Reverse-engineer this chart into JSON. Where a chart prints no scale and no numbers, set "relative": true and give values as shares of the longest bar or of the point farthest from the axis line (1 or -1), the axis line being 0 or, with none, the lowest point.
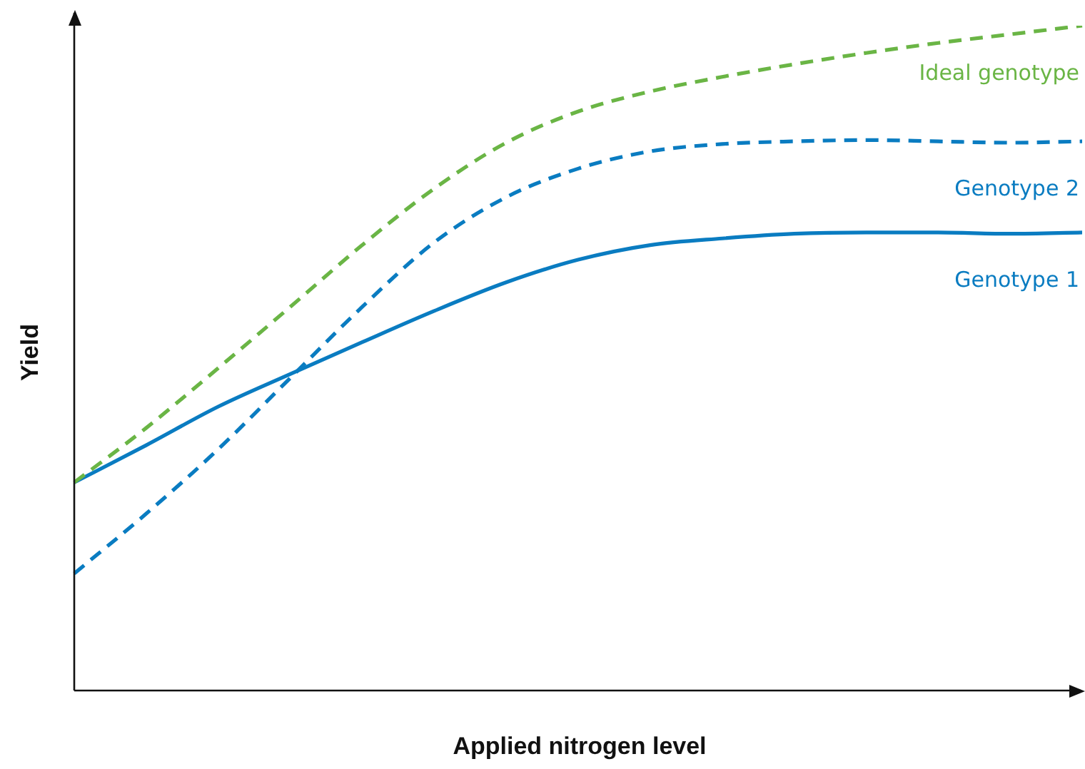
{
  "chart_data": {
    "type": "line",
    "relative": true,
    "xlabel": "Applied nitrogen level",
    "ylabel": "Yield",
    "categories": [
      null,
      null,
      null,
      null,
      null,
      null,
      null,
      null,
      null,
      null,
      null,
      null,
      null,
      null,
      null
    ],
    "legend": false,
    "marker": "none",
    "series": [
      {
        "name": "Ideal genotype",
        "color": "#6ab545",
        "line_style": "dashed",
        "values": [
          0.313,
          0.395,
          0.485,
          0.577,
          0.67,
          0.755,
          0.824,
          0.871,
          0.901,
          0.923,
          0.942,
          0.959,
          0.974,
          0.987,
          1
        ]
      },
      {
        "name": "Genotype 2",
        "color": "#0a7cc1",
        "line_style": "dashed",
        "values": [
          0.176,
          0.266,
          0.363,
          0.47,
          0.577,
          0.674,
          0.742,
          0.785,
          0.811,
          0.822,
          0.826,
          0.828,
          0.826,
          0.824,
          0.826
        ]
      },
      {
        "name": "Genotype 1",
        "color": "#0a7cc1",
        "line_style": "solid",
        "values": [
          0.313,
          0.369,
          0.427,
          0.476,
          0.524,
          0.571,
          0.614,
          0.648,
          0.67,
          0.68,
          0.687,
          0.689,
          0.689,
          0.687,
          0.689
        ]
      }
    ]
  }
}
